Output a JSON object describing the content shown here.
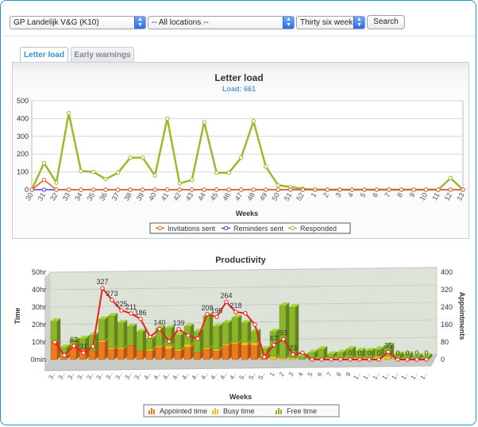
{
  "filters": {
    "organisation": "GP Landelijk V&G (K10)",
    "location": "-- All locations --",
    "period": "Thirty six weeks",
    "search_label": "Search"
  },
  "tabs": [
    {
      "label": "Letter load",
      "active": true
    },
    {
      "label": "Early warnings",
      "active": false
    }
  ],
  "colors": {
    "invitations": "#e8621e",
    "reminders": "#4d3ed8",
    "responded": "#9bba2a",
    "appointed": "#ee7a1e",
    "busy": "#e8c51e",
    "free": "#8bb52a",
    "productivity_line": "#e82020",
    "accent": "#3b8fd0"
  },
  "chart_data": [
    {
      "type": "line",
      "title": "Letter load",
      "subtitle": "Load: 661",
      "xlabel": "Weeks",
      "ylabel": "",
      "ylim": [
        0,
        500
      ],
      "yticks": [
        0,
        100,
        200,
        300,
        400,
        500
      ],
      "grid": true,
      "legend_position": "bottom",
      "categories": [
        "30",
        "31",
        "32",
        "33",
        "34",
        "35",
        "36",
        "37",
        "38",
        "39",
        "40",
        "41",
        "42",
        "43",
        "44",
        "45",
        "46",
        "47",
        "48",
        "49",
        "50",
        "51",
        "52",
        "1",
        "2",
        "3",
        "4",
        "5",
        "6",
        "7",
        "8",
        "9",
        "10",
        "11",
        "12",
        "13"
      ],
      "series": [
        {
          "name": "Invitations sent",
          "values": [
            0,
            55,
            0,
            0,
            0,
            0,
            0,
            0,
            0,
            0,
            0,
            0,
            0,
            0,
            0,
            0,
            0,
            0,
            0,
            0,
            0,
            0,
            0,
            0,
            0,
            0,
            0,
            0,
            0,
            0,
            0,
            0,
            0,
            0,
            0,
            0
          ]
        },
        {
          "name": "Reminders sent",
          "values": [
            0,
            0,
            0,
            0,
            0,
            0,
            0,
            0,
            0,
            0,
            0,
            0,
            0,
            0,
            0,
            0,
            0,
            0,
            0,
            0,
            0,
            0,
            0,
            0,
            0,
            0,
            0,
            0,
            0,
            0,
            0,
            0,
            0,
            0,
            0,
            0
          ]
        },
        {
          "name": "Responded",
          "values": [
            0,
            150,
            40,
            430,
            105,
            100,
            60,
            95,
            180,
            180,
            80,
            400,
            35,
            55,
            380,
            95,
            95,
            180,
            385,
            130,
            25,
            15,
            5,
            0,
            0,
            0,
            0,
            0,
            0,
            0,
            0,
            0,
            0,
            0,
            65,
            0
          ]
        }
      ]
    },
    {
      "type": "bar",
      "title": "Productivity",
      "xlabel": "Weeks",
      "ylabel": "Time",
      "y2label": "Appointments",
      "yticks": [
        "0min",
        "10hr",
        "20hr",
        "30hr",
        "40hr",
        "50hr"
      ],
      "y2ticks": [
        0,
        80,
        160,
        240,
        320,
        400
      ],
      "ylim": [
        0,
        50
      ],
      "y2lim": [
        0,
        400
      ],
      "legend_position": "bottom",
      "categories": [
        "3..",
        "3..",
        "3..",
        "3..",
        "3..",
        "3..",
        "3..",
        "3..",
        "3..",
        "3..",
        "4..",
        "4..",
        "4..",
        "4..",
        "4..",
        "4..",
        "4..",
        "4..",
        "4..",
        "4..",
        "5..",
        "5..",
        "5..",
        "1",
        "2",
        "3",
        "4",
        "5",
        "6",
        "7",
        "8",
        "9",
        "1..",
        "1..",
        "1..",
        "1..",
        "1..",
        "1..",
        "1..",
        "1.."
      ],
      "series": [
        {
          "name": "Appointed time",
          "values": [
            10,
            2,
            8,
            6,
            5,
            10,
            6,
            6,
            8,
            5,
            5,
            7,
            6,
            5,
            7,
            4,
            6,
            5,
            8,
            9,
            8,
            8,
            2,
            0,
            0,
            0,
            0,
            0,
            0,
            0,
            0,
            0,
            0,
            0,
            0,
            0,
            0,
            0,
            0,
            0
          ]
        },
        {
          "name": "Busy time",
          "values": [
            0,
            1,
            0,
            0,
            0,
            1,
            1,
            1,
            0,
            0,
            1,
            1,
            2,
            1,
            2,
            0,
            1,
            1,
            1,
            1,
            2,
            2,
            1,
            2,
            1,
            1,
            0,
            0,
            0,
            1,
            1,
            1,
            1,
            1,
            2,
            2,
            0,
            0,
            0,
            0
          ]
        },
        {
          "name": "Free time",
          "values": [
            12,
            4,
            3,
            6,
            9,
            12,
            18,
            14,
            11,
            11,
            6,
            10,
            10,
            8,
            10,
            12,
            18,
            13,
            12,
            14,
            11,
            6,
            3,
            14,
            30,
            29,
            2,
            4,
            6,
            2,
            3,
            5,
            4,
            4,
            4,
            6,
            3,
            3,
            2,
            2
          ]
        },
        {
          "name": "Appointments",
          "axis": "secondary",
          "values": [
            80,
            20,
            62,
            31,
            60,
            327,
            273,
            225,
            211,
            186,
            104,
            140,
            83,
            139,
            110,
            96,
            208,
            195,
            264,
            218,
            212,
            160,
            12,
            67,
            93,
            23,
            31,
            0,
            0,
            0,
            0,
            0,
            0,
            0,
            0,
            35,
            0,
            0,
            0,
            0
          ]
        }
      ],
      "point_labels": [
        "",
        "",
        "62",
        "31",
        "",
        "327",
        "273",
        "225",
        "211",
        "186",
        "",
        "140",
        "",
        "139",
        "",
        "",
        "208",
        "195",
        "264",
        "218",
        "",
        "",
        "",
        "67",
        "93",
        "23",
        "",
        "",
        "",
        "",
        "",
        "0",
        "0",
        "0",
        "0",
        "35",
        "0",
        "0",
        "0",
        "0"
      ]
    }
  ]
}
